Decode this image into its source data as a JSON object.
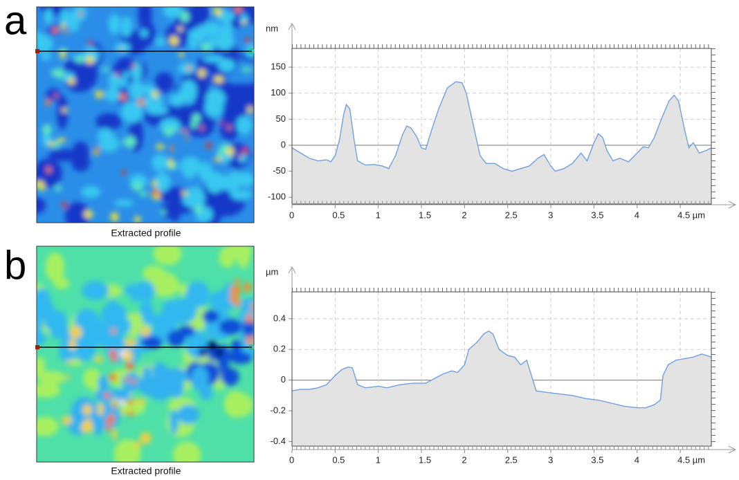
{
  "chart_data": [
    {
      "type": "area",
      "panel_label": "a",
      "image_caption": "Extracted profile",
      "y_label": "nm",
      "x": [
        0,
        0.1,
        0.2,
        0.3,
        0.4,
        0.45,
        0.5,
        0.55,
        0.6,
        0.63,
        0.67,
        0.72,
        0.76,
        0.85,
        0.95,
        1.05,
        1.12,
        1.2,
        1.28,
        1.33,
        1.38,
        1.45,
        1.5,
        1.55,
        1.6,
        1.7,
        1.8,
        1.9,
        1.97,
        2.02,
        2.1,
        2.18,
        2.25,
        2.35,
        2.45,
        2.55,
        2.65,
        2.75,
        2.85,
        2.92,
        3.0,
        3.05,
        3.15,
        3.25,
        3.35,
        3.42,
        3.5,
        3.55,
        3.6,
        3.65,
        3.72,
        3.8,
        3.9,
        4.0,
        4.07,
        4.13,
        4.2,
        4.28,
        4.37,
        4.43,
        4.48,
        4.55,
        4.6,
        4.65,
        4.72,
        4.8,
        4.86
      ],
      "values": [
        -5,
        -15,
        -25,
        -30,
        -28,
        -32,
        -20,
        10,
        60,
        78,
        70,
        10,
        -30,
        -38,
        -37,
        -40,
        -45,
        -20,
        20,
        37,
        33,
        15,
        -5,
        -8,
        20,
        70,
        110,
        122,
        120,
        100,
        40,
        -20,
        -35,
        -35,
        -45,
        -50,
        -45,
        -40,
        -25,
        -18,
        -40,
        -50,
        -45,
        -35,
        -15,
        -30,
        5,
        22,
        15,
        -10,
        -30,
        -25,
        -32,
        -15,
        -3,
        -5,
        15,
        50,
        85,
        96,
        85,
        30,
        -5,
        5,
        -15,
        -10,
        -5
      ],
      "color": "#6ea0e0",
      "fill_color": "#e3e3e3",
      "xlim": [
        0,
        4.86
      ],
      "ylim": [
        -113,
        186
      ],
      "xticks": [
        0,
        0.5,
        1,
        1.5,
        2,
        2.5,
        3,
        3.5,
        4,
        {
          "value": 4.5,
          "label": "4.5 µm"
        }
      ],
      "yticks": [
        -100,
        -50,
        0,
        50,
        100,
        150
      ],
      "grid": true
    },
    {
      "type": "area",
      "panel_label": "b",
      "image_caption": "Extracted profile",
      "y_label": "µm",
      "x": [
        0,
        0.1,
        0.2,
        0.3,
        0.4,
        0.5,
        0.58,
        0.65,
        0.7,
        0.76,
        0.85,
        1.0,
        1.1,
        1.25,
        1.4,
        1.55,
        1.65,
        1.75,
        1.85,
        1.92,
        2.0,
        2.05,
        2.15,
        2.22,
        2.28,
        2.33,
        2.4,
        2.5,
        2.58,
        2.65,
        2.72,
        2.77,
        2.83,
        2.95,
        3.1,
        3.25,
        3.4,
        3.55,
        3.7,
        3.85,
        4.0,
        4.1,
        4.2,
        4.27,
        4.3,
        4.36,
        4.45,
        4.55,
        4.65,
        4.75,
        4.86
      ],
      "values": [
        -0.07,
        -0.06,
        -0.06,
        -0.05,
        -0.03,
        0.03,
        0.07,
        0.085,
        0.08,
        -0.03,
        -0.05,
        -0.04,
        -0.05,
        -0.03,
        -0.02,
        -0.02,
        0.01,
        0.04,
        0.06,
        0.05,
        0.1,
        0.2,
        0.25,
        0.3,
        0.32,
        0.3,
        0.2,
        0.16,
        0.15,
        0.1,
        0.13,
        0.04,
        -0.07,
        -0.08,
        -0.09,
        -0.1,
        -0.12,
        -0.13,
        -0.15,
        -0.17,
        -0.18,
        -0.18,
        -0.16,
        -0.13,
        0.03,
        0.1,
        0.13,
        0.14,
        0.15,
        0.17,
        0.15
      ],
      "color": "#6ea0e0",
      "fill_color": "#e3e3e3",
      "xlim": [
        0,
        4.86
      ],
      "ylim": [
        -0.43,
        0.575
      ],
      "xticks": [
        0,
        0.5,
        1,
        1.5,
        2,
        2.5,
        3,
        3.5,
        4,
        {
          "value": 4.5,
          "label": "4.5 µm"
        }
      ],
      "yticks": [
        -0.4,
        -0.2,
        0,
        0.2,
        0.4
      ],
      "grid": true
    }
  ]
}
